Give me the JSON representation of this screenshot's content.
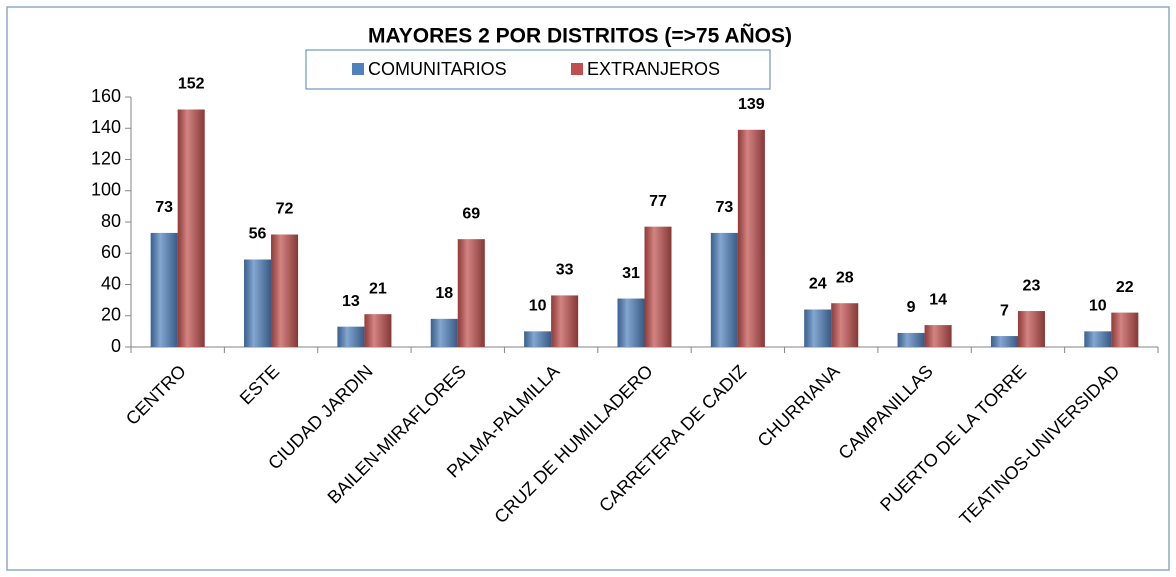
{
  "chart_data": {
    "type": "bar",
    "title": "MAYORES 2 POR DISTRITOS (=>75 AÑOS)",
    "categories": [
      "CENTRO",
      "ESTE",
      "CIUDAD JARDIN",
      "BAILEN-MIRAFLORES",
      "PALMA-PALMILLA",
      "CRUZ DE HUMILLADERO",
      "CARRETERA DE CADIZ",
      "CHURRIANA",
      "CAMPANILLAS",
      "PUERTO DE LA TORRE",
      "TEATINOS-UNIVERSIDAD"
    ],
    "series": [
      {
        "name": "COMUNITARIOS",
        "color": "#4f81bd",
        "values": [
          73,
          56,
          13,
          18,
          10,
          31,
          73,
          24,
          9,
          7,
          10
        ]
      },
      {
        "name": "EXTRANJEROS",
        "color": "#c0504d",
        "values": [
          152,
          72,
          21,
          69,
          33,
          77,
          139,
          28,
          14,
          23,
          22
        ]
      }
    ],
    "ylim": [
      0,
      160
    ],
    "yticks": [
      0,
      20,
      40,
      60,
      80,
      100,
      120,
      140,
      160
    ],
    "grid": false,
    "legend": "top"
  }
}
